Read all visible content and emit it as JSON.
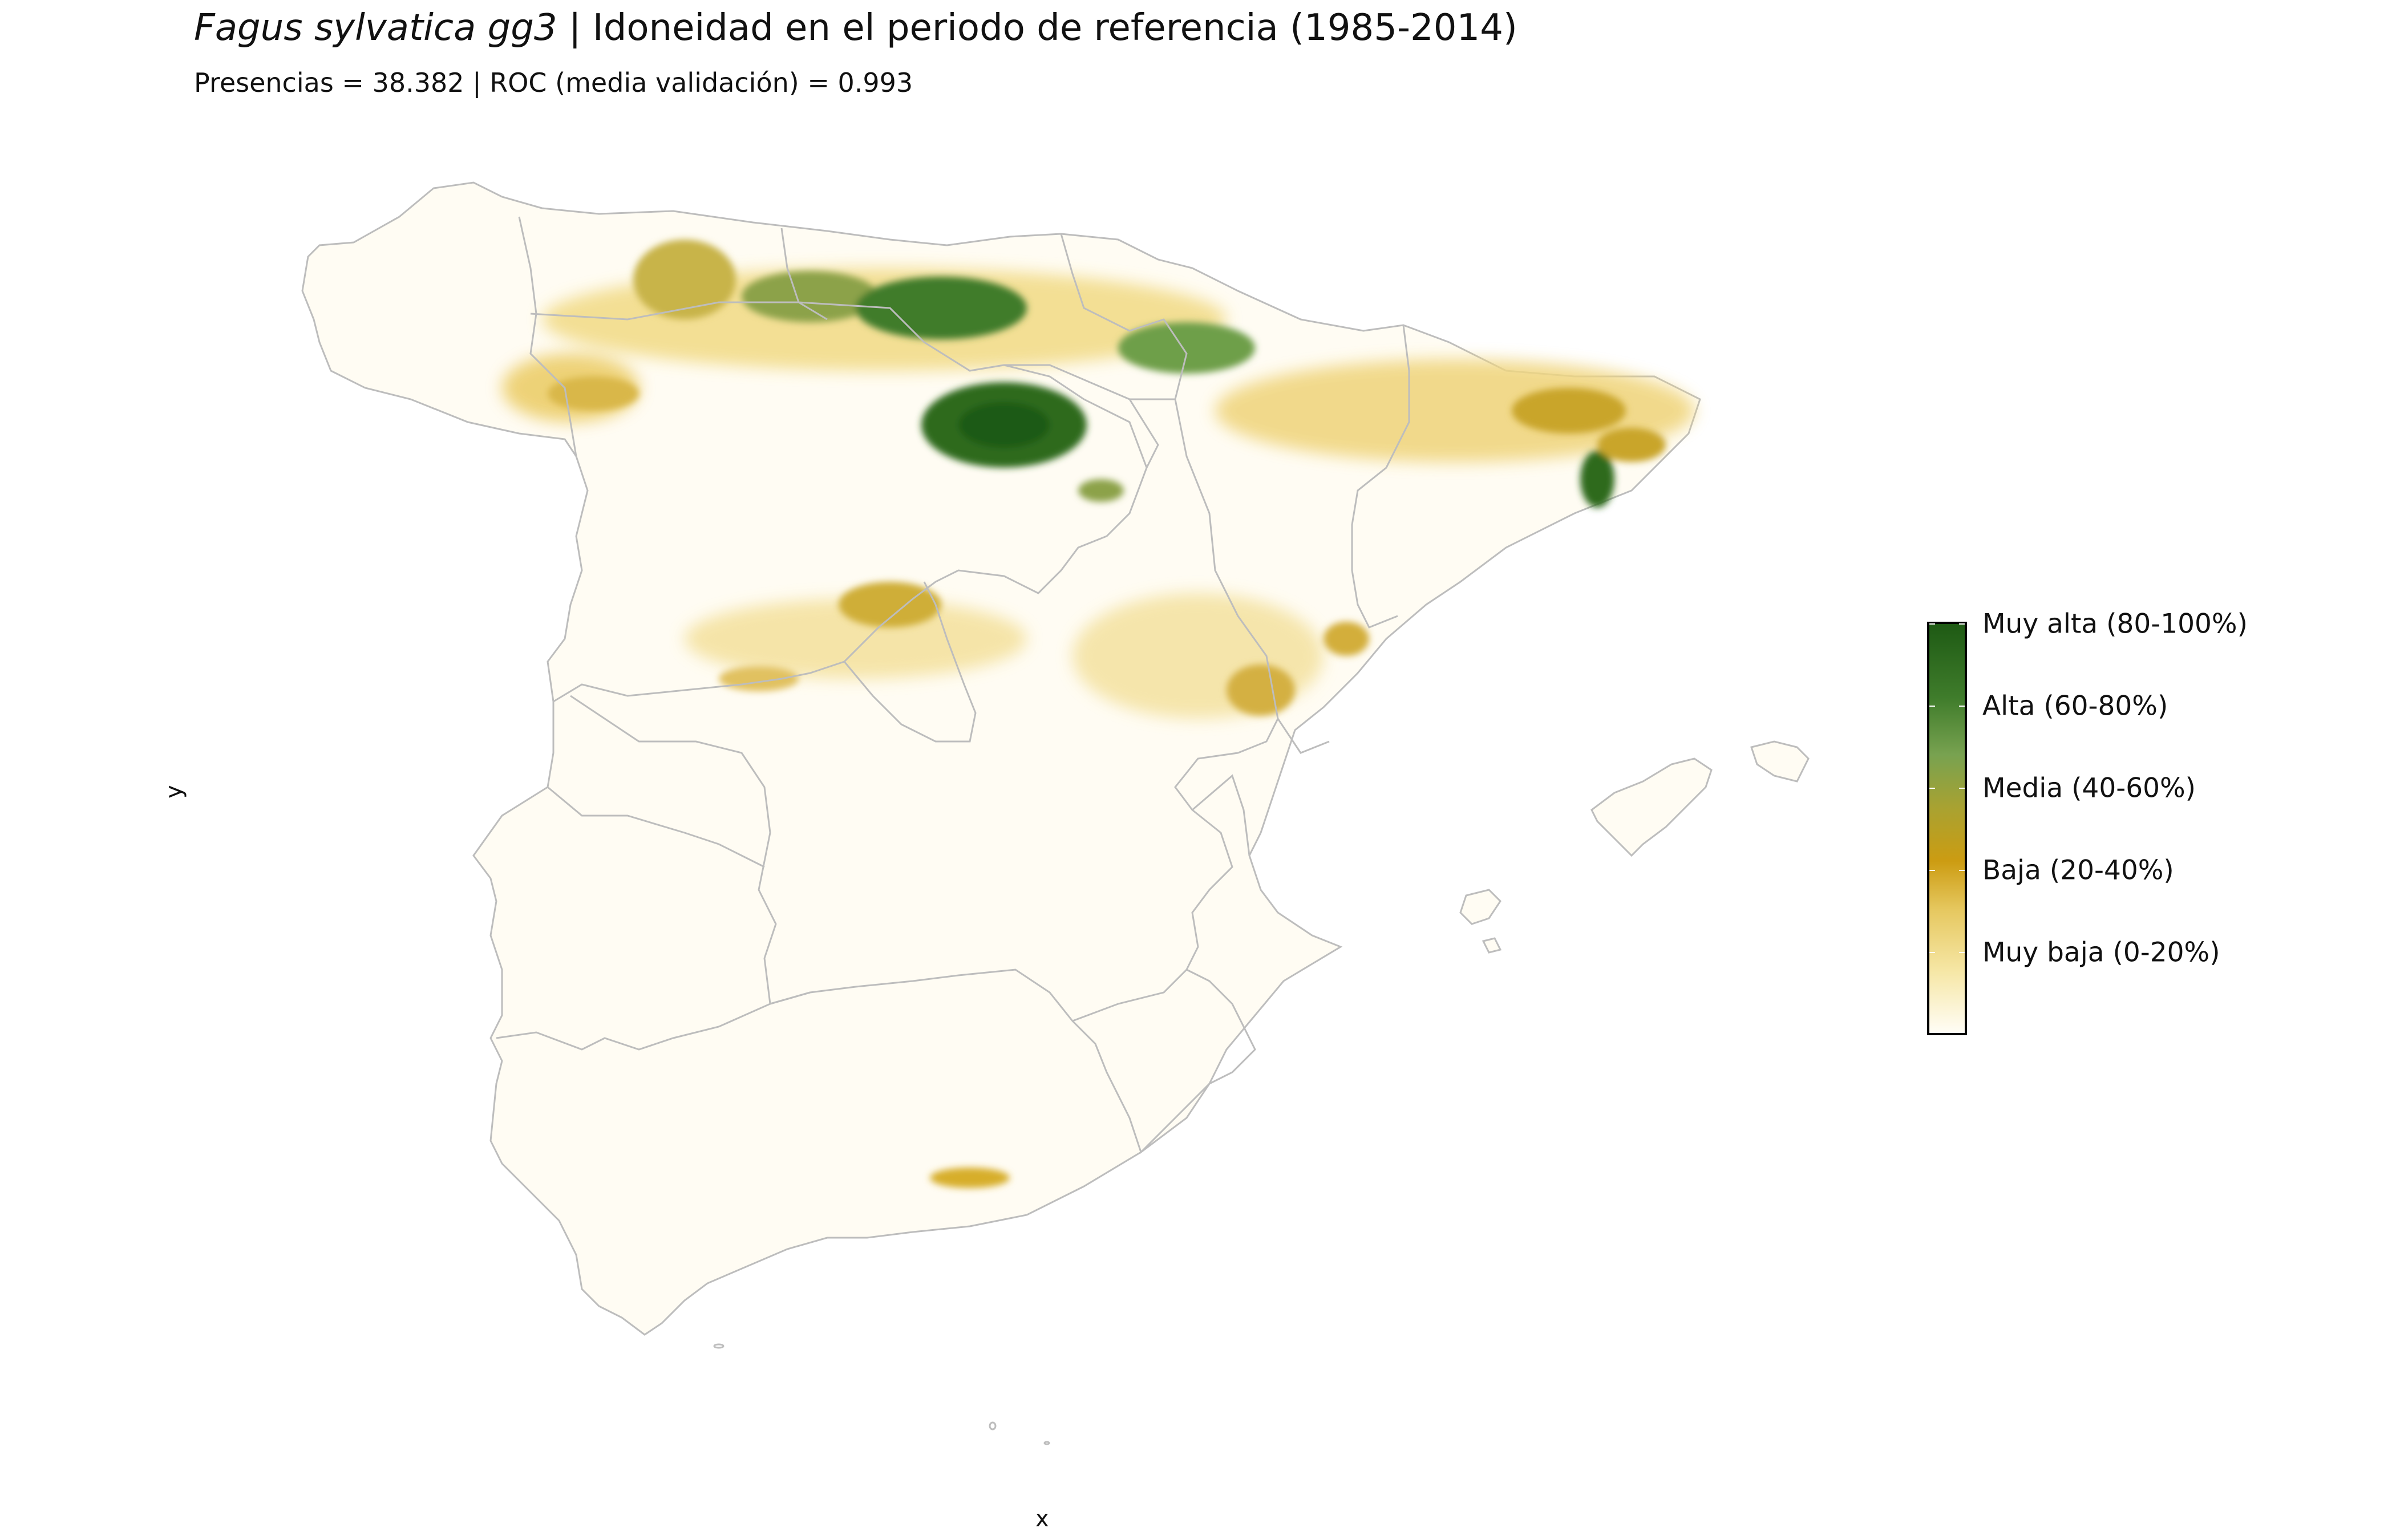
{
  "title": {
    "species": "Fagus sylvatica gg3",
    "separator": " | ",
    "text": "Idoneidad en el periodo de referencia (1985-2014)"
  },
  "subtitle": "Presencias = 38.382  |  ROC (media validación) = 0.993",
  "axes": {
    "x_label": "x",
    "y_label": "y"
  },
  "legend": {
    "items": [
      {
        "label": "Muy alta (80-100%)",
        "color": "#1e5a14"
      },
      {
        "label": "Alta (60-80%)",
        "color": "#6e9f4a"
      },
      {
        "label": "Media (40-60%)",
        "color": "#a9a231"
      },
      {
        "label": "Baja (20-40%)",
        "color": "#d4a51e"
      },
      {
        "label": "Muy baja (0-20%)",
        "color": "#f4e4a0"
      }
    ]
  },
  "map": {
    "boundary_color": "#bdbdbd",
    "base_fill": "#fffcf3"
  }
}
